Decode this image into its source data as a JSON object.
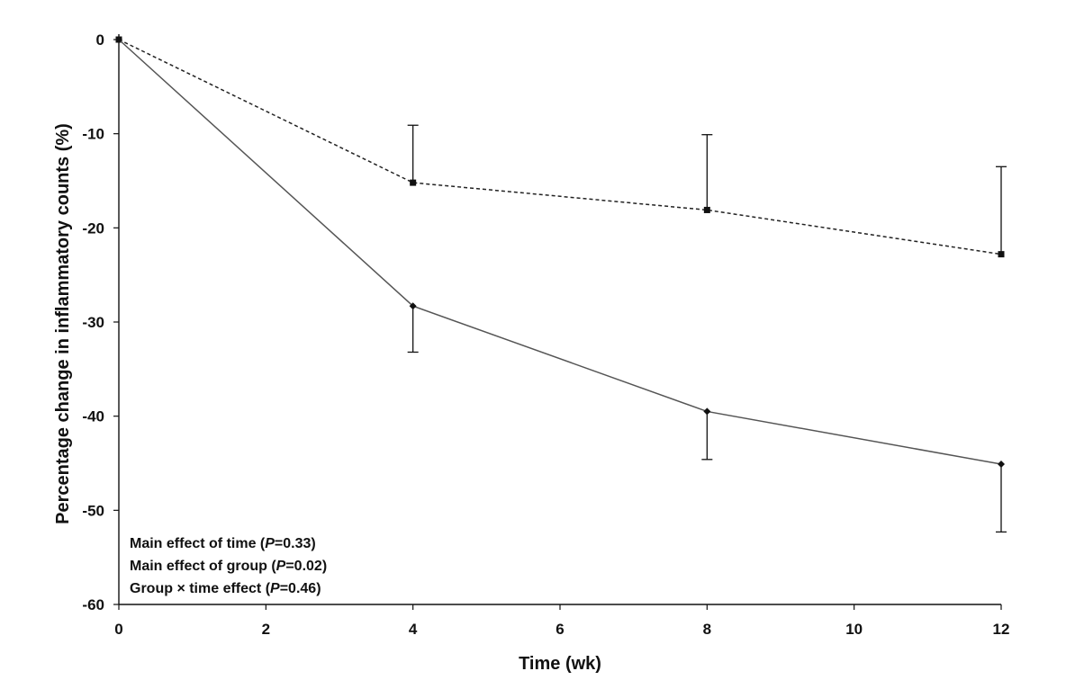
{
  "chart_data": {
    "type": "line",
    "xlabel": "Time (wk)",
    "ylabel": "Percentage change in inflammatory counts (%)",
    "xlim": [
      0,
      12
    ],
    "ylim": [
      -60,
      0
    ],
    "xticks": [
      0,
      2,
      4,
      6,
      8,
      10,
      12
    ],
    "yticks": [
      0,
      -10,
      -20,
      -30,
      -40,
      -50,
      -60
    ],
    "grid": false,
    "series": [
      {
        "style": "dashed",
        "marker": "square",
        "color": "#222222",
        "x": [
          0,
          4,
          8,
          12
        ],
        "y": [
          0,
          -15.2,
          -18.1,
          -22.8
        ],
        "error_upper": [
          0,
          6.1,
          8.0,
          9.3
        ]
      },
      {
        "style": "solid",
        "marker": "diamond",
        "color": "#555555",
        "x": [
          0,
          4,
          8,
          12
        ],
        "y": [
          0,
          -28.3,
          -39.5,
          -45.1
        ],
        "error_lower": [
          0,
          4.9,
          5.1,
          7.2
        ]
      }
    ],
    "annotations": [
      {
        "prefix": "Main effect of time (",
        "p": "P",
        "suffix": "=0.33)"
      },
      {
        "prefix": "Main effect of group (",
        "p": "P",
        "suffix": "=0.02)"
      },
      {
        "prefix": "Group × time effect (",
        "p": "P",
        "suffix": "=0.46)"
      }
    ]
  }
}
